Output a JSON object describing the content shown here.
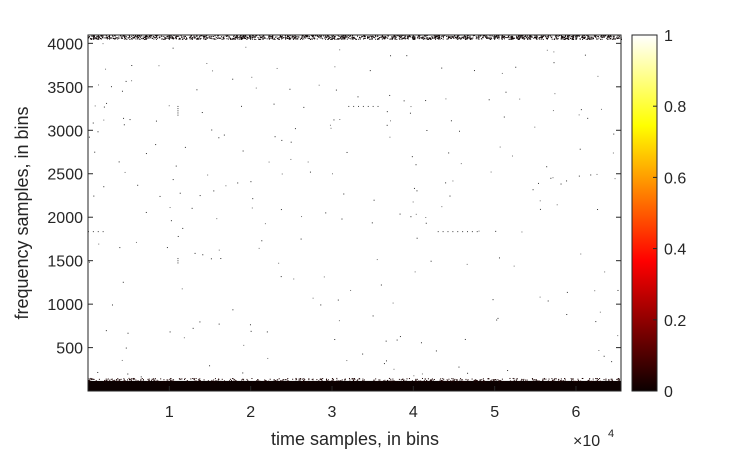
{
  "chart_data": {
    "type": "heatmap",
    "title": "",
    "xlabel": "time samples, in bins",
    "ylabel": "frequency samples, in bins",
    "x_exponent_label": "×10",
    "x_exponent_power": "4",
    "x_tick_scale": 10000,
    "xlim": [
      0,
      65536
    ],
    "ylim": [
      1,
      4096
    ],
    "x_ticks": [
      {
        "value": 10000,
        "label": "1"
      },
      {
        "value": 20000,
        "label": "2"
      },
      {
        "value": 30000,
        "label": "3"
      },
      {
        "value": 40000,
        "label": "4"
      },
      {
        "value": 50000,
        "label": "5"
      },
      {
        "value": 60000,
        "label": "6"
      }
    ],
    "y_ticks": [
      {
        "value": 500,
        "label": "500"
      },
      {
        "value": 1000,
        "label": "1000"
      },
      {
        "value": 1500,
        "label": "1500"
      },
      {
        "value": 2000,
        "label": "2000"
      },
      {
        "value": 2500,
        "label": "2500"
      },
      {
        "value": 3000,
        "label": "3000"
      },
      {
        "value": 3500,
        "label": "3500"
      },
      {
        "value": 4000,
        "label": "4000"
      }
    ],
    "colorbar": {
      "colormap": "hot",
      "range": [
        0,
        1
      ],
      "ticks": [
        {
          "value": 0,
          "label": "0"
        },
        {
          "value": 0.2,
          "label": "0.2"
        },
        {
          "value": 0.4,
          "label": "0.4"
        },
        {
          "value": 0.6,
          "label": "0.6"
        },
        {
          "value": 0.8,
          "label": "0.8"
        },
        {
          "value": 1,
          "label": "1"
        }
      ]
    },
    "background_value": 1,
    "dense_bands": [
      {
        "y_range": [
          1,
          140
        ],
        "value": 0
      },
      {
        "y_range": [
          4050,
          4096
        ],
        "value": 0,
        "sparse": true
      }
    ],
    "dotted_rows": [
      {
        "y": 3280,
        "x_range": [
          32000,
          36000
        ]
      },
      {
        "y": 1840,
        "x_range": [
          43000,
          48000
        ]
      },
      {
        "y": 1840,
        "x_range": [
          0,
          2000
        ]
      }
    ],
    "dotted_columns": [
      {
        "x": 11000,
        "y_range": [
          3180,
          3300
        ]
      },
      {
        "x": 11000,
        "y_range": [
          1480,
          1530
        ]
      }
    ],
    "grid": false
  }
}
